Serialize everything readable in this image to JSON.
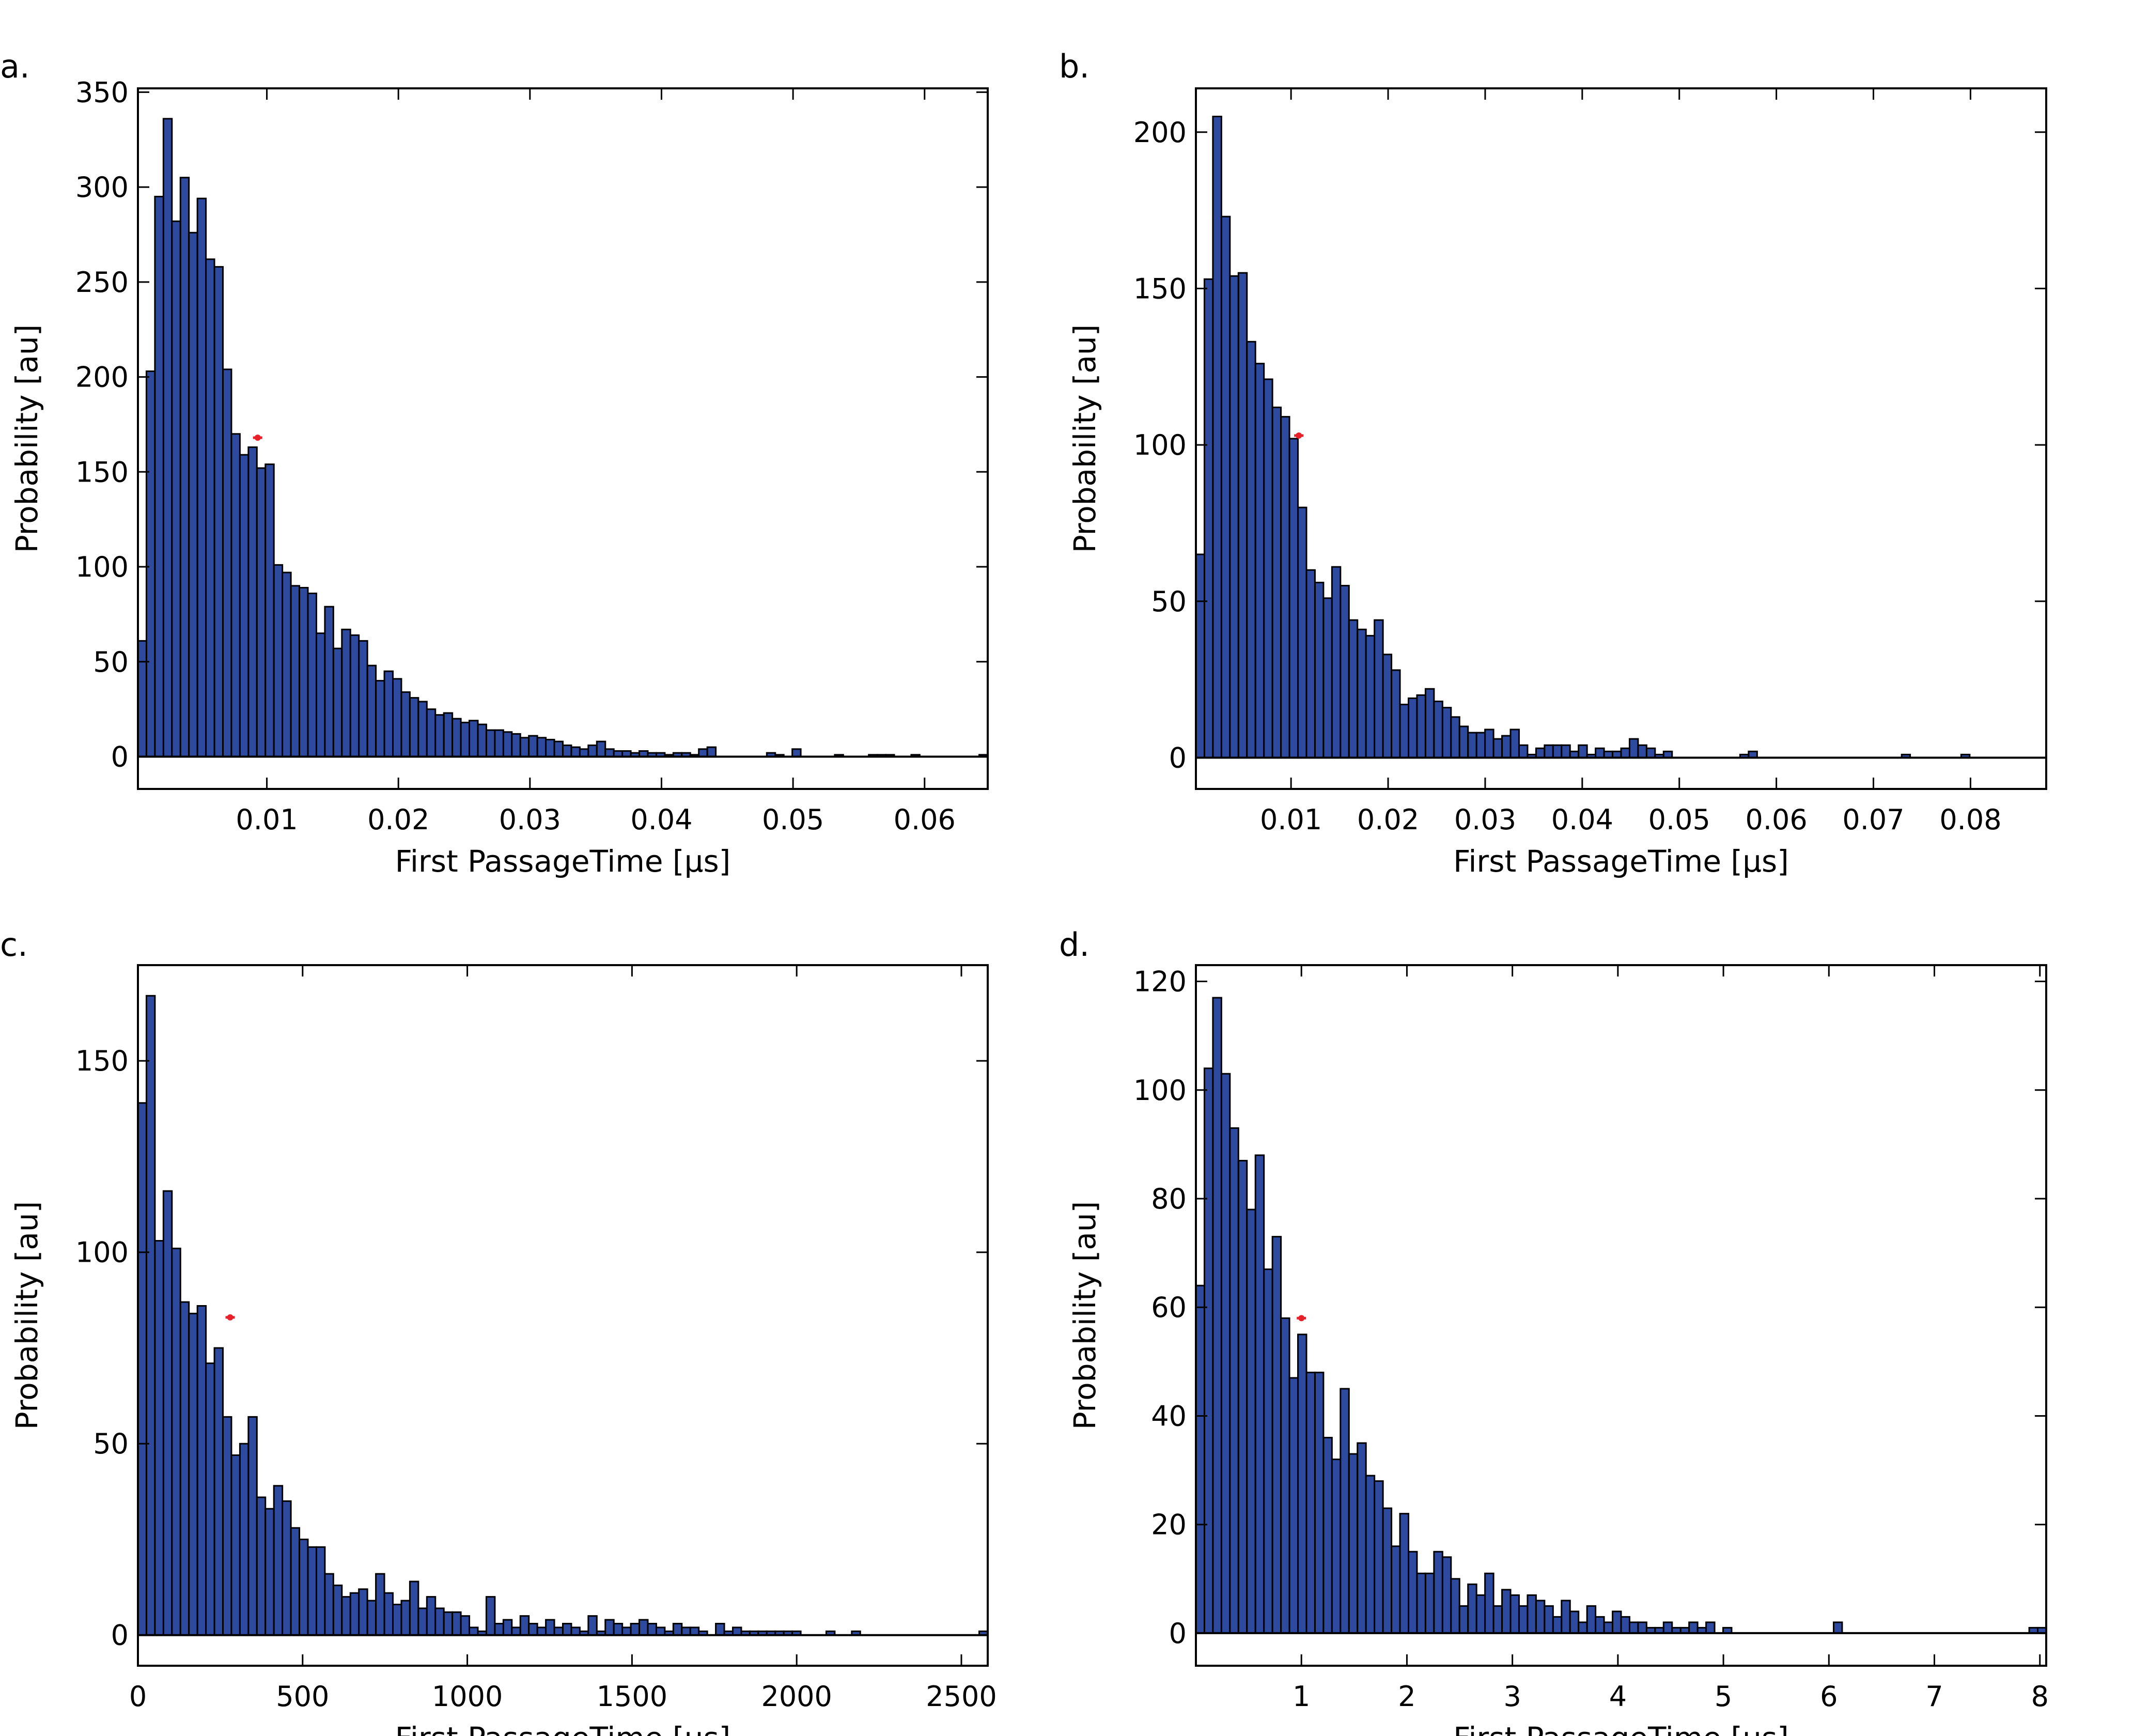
{
  "figure": {
    "bar_color": "#2e4a9e",
    "edge_color": "#000000",
    "marker_color": "#e8202a"
  },
  "chart_data": [
    {
      "type": "bar",
      "panel_label": "a.",
      "xlabel": "First PassageTime [μs]",
      "ylabel": "Probability [au]",
      "xlim": [
        0.0002,
        0.0648
      ],
      "ylim": [
        -17,
        352
      ],
      "xticks": [
        0.01,
        0.02,
        0.03,
        0.04,
        0.05,
        0.06
      ],
      "xtick_labels": [
        "0.01",
        "0.02",
        "0.03",
        "0.04",
        "0.05",
        "0.06"
      ],
      "yticks": [
        0,
        50,
        100,
        150,
        200,
        250,
        300,
        350
      ],
      "ytick_labels": [
        "0",
        "50",
        "100",
        "150",
        "200",
        "250",
        "300",
        "350"
      ],
      "bin_start": 0.0002,
      "bin_width": 0.000646,
      "values": [
        61,
        203,
        295,
        336,
        282,
        305,
        276,
        294,
        262,
        258,
        204,
        170,
        159,
        163,
        152,
        154,
        101,
        97,
        90,
        89,
        86,
        65,
        79,
        57,
        67,
        64,
        61,
        48,
        40,
        45,
        41,
        34,
        31,
        29,
        25,
        22,
        23,
        20,
        18,
        19,
        17,
        14,
        14,
        13,
        12,
        10,
        11,
        10,
        9,
        8,
        6,
        5,
        4,
        6,
        8,
        4,
        3,
        3,
        2,
        3,
        2,
        2,
        1,
        2,
        2,
        1,
        4,
        5,
        0,
        0,
        0,
        0,
        0,
        0,
        2,
        1,
        0,
        4,
        0,
        0,
        0,
        0,
        1,
        0,
        0,
        0,
        1,
        1,
        1,
        0,
        0,
        1,
        0,
        0,
        0,
        0,
        0,
        0,
        0,
        1
      ],
      "marker": {
        "x": 0.0093,
        "y": 168
      }
    },
    {
      "type": "bar",
      "panel_label": "b.",
      "xlabel": "First PassageTime [μs]",
      "ylabel": "Probability [au]",
      "xlim": [
        0.0002,
        0.0878
      ],
      "ylim": [
        -10,
        214
      ],
      "xticks": [
        0.01,
        0.02,
        0.03,
        0.04,
        0.05,
        0.06,
        0.07,
        0.08
      ],
      "xtick_labels": [
        "0.01",
        "0.02",
        "0.03",
        "0.04",
        "0.05",
        "0.06",
        "0.07",
        "0.08"
      ],
      "yticks": [
        0,
        50,
        100,
        150,
        200
      ],
      "ytick_labels": [
        "0",
        "50",
        "100",
        "150",
        "200"
      ],
      "bin_start": 0.0002,
      "bin_width": 0.000876,
      "values": [
        65,
        153,
        205,
        173,
        154,
        155,
        133,
        126,
        121,
        112,
        109,
        102,
        80,
        60,
        56,
        51,
        61,
        55,
        44,
        41,
        39,
        44,
        33,
        28,
        17,
        19,
        20,
        22,
        18,
        16,
        13,
        10,
        8,
        8,
        9,
        6,
        7,
        9,
        4,
        1,
        3,
        4,
        4,
        4,
        2,
        4,
        1,
        3,
        2,
        2,
        3,
        6,
        4,
        3,
        1,
        2,
        0,
        0,
        0,
        0,
        0,
        0,
        0,
        0,
        1,
        2,
        0,
        0,
        0,
        0,
        0,
        0,
        0,
        0,
        0,
        0,
        0,
        0,
        0,
        0,
        0,
        0,
        0,
        1,
        0,
        0,
        0,
        0,
        0,
        0,
        1,
        0,
        0,
        0,
        0,
        0,
        0,
        0,
        0,
        0
      ],
      "marker": {
        "x": 0.0108,
        "y": 103
      }
    },
    {
      "type": "bar",
      "panel_label": "c.",
      "xlabel": "First PassageTime [μs]",
      "ylabel": "Probability [au]",
      "xlim": [
        0,
        2580
      ],
      "ylim": [
        -8,
        175
      ],
      "xticks": [
        0,
        500,
        1000,
        1500,
        2000,
        2500
      ],
      "xtick_labels": [
        "0",
        "500",
        "1000",
        "1500",
        "2000",
        "2500"
      ],
      "yticks": [
        0,
        50,
        100,
        150
      ],
      "ytick_labels": [
        "0",
        "50",
        "100",
        "150"
      ],
      "bin_start": 0,
      "bin_width": 25.8,
      "values": [
        139,
        167,
        103,
        116,
        101,
        87,
        84,
        86,
        71,
        75,
        57,
        47,
        50,
        57,
        36,
        33,
        39,
        35,
        28,
        25,
        23,
        23,
        16,
        13,
        10,
        11,
        12,
        9,
        16,
        11,
        8,
        9,
        14,
        7,
        10,
        7,
        6,
        6,
        5,
        2,
        1,
        10,
        3,
        4,
        2,
        5,
        3,
        2,
        4,
        2,
        3,
        2,
        1,
        5,
        1,
        4,
        3,
        2,
        3,
        4,
        3,
        2,
        1,
        3,
        2,
        2,
        1,
        0,
        3,
        1,
        2,
        1,
        1,
        1,
        1,
        1,
        1,
        1,
        0,
        0,
        0,
        1,
        0,
        0,
        1,
        0,
        0,
        0,
        0,
        0,
        0,
        0,
        0,
        0,
        0,
        0,
        0,
        0,
        0,
        1
      ],
      "marker": {
        "x": 280,
        "y": 83
      }
    },
    {
      "type": "bar",
      "panel_label": "d.",
      "xlabel": "First PassageTime [μs]",
      "ylabel": "Probability [au]",
      "xlim": [
        0.0,
        8.06
      ],
      "ylim": [
        -6,
        123
      ],
      "xticks": [
        1,
        2,
        3,
        4,
        5,
        6,
        7,
        8
      ],
      "xtick_labels": [
        "1",
        "2",
        "3",
        "4",
        "5",
        "6",
        "7",
        "8"
      ],
      "yticks": [
        0,
        20,
        40,
        60,
        80,
        100,
        120
      ],
      "ytick_labels": [
        "0",
        "20",
        "40",
        "60",
        "80",
        "100",
        "120"
      ],
      "bin_start": 0.0,
      "bin_width": 0.0806,
      "values": [
        64,
        104,
        117,
        103,
        93,
        87,
        78,
        88,
        67,
        73,
        58,
        47,
        55,
        48,
        48,
        36,
        32,
        45,
        33,
        35,
        29,
        28,
        23,
        16,
        22,
        15,
        11,
        11,
        15,
        14,
        10,
        5,
        9,
        7,
        11,
        5,
        8,
        7,
        5,
        7,
        6,
        5,
        3,
        6,
        4,
        2,
        5,
        3,
        2,
        4,
        3,
        2,
        2,
        1,
        1,
        2,
        1,
        1,
        2,
        1,
        2,
        0,
        1,
        0,
        0,
        0,
        0,
        0,
        0,
        0,
        0,
        0,
        0,
        0,
        0,
        2,
        0,
        0,
        0,
        0,
        0,
        0,
        0,
        0,
        0,
        0,
        0,
        0,
        0,
        0,
        0,
        0,
        0,
        0,
        0,
        0,
        0,
        0,
        1,
        1
      ],
      "marker": {
        "x": 1.0,
        "y": 58
      }
    }
  ]
}
